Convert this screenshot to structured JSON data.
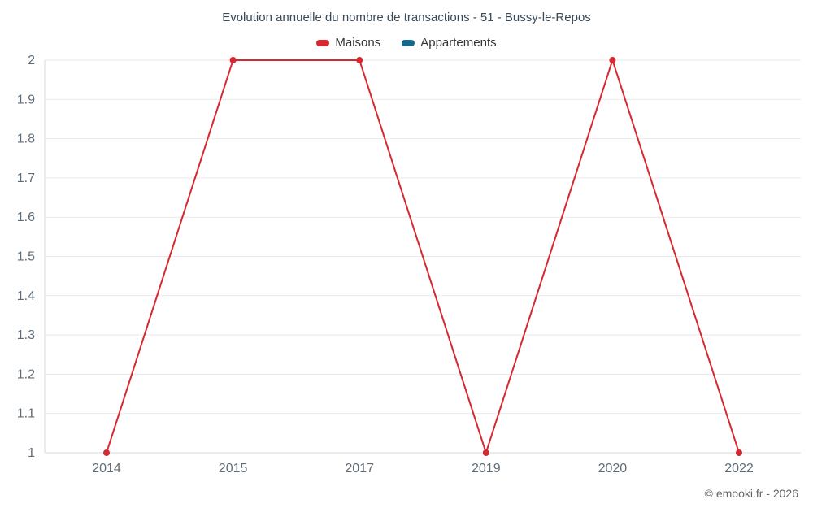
{
  "header": {
    "title": "Evolution annuelle du nombre de transactions - 51 - Bussy-le-Repos"
  },
  "footer": {
    "copyright": "© emooki.fr - 2026"
  },
  "colors": {
    "maisons": "#d7282f",
    "appartements": "#16698e",
    "grid": "#e9e9e9",
    "axis": "#d9d9d9",
    "tick_text": "#5f6b76",
    "title_text": "#3b4a56"
  },
  "chart_data": {
    "type": "line",
    "title": "Evolution annuelle du nombre de transactions - 51 - Bussy-le-Repos",
    "categories": [
      "2014",
      "2015",
      "2017",
      "2019",
      "2020",
      "2022"
    ],
    "series": [
      {
        "name": "Maisons",
        "color": "#d7282f",
        "values": [
          1,
          2,
          2,
          1,
          2,
          1
        ]
      },
      {
        "name": "Appartements",
        "color": "#16698e",
        "values": []
      }
    ],
    "xlabel": "",
    "ylabel": "",
    "ylim": [
      1,
      2
    ],
    "yticks": [
      {
        "value": 1,
        "label": "1"
      },
      {
        "value": 1.1,
        "label": "1.1"
      },
      {
        "value": 1.2,
        "label": "1.2"
      },
      {
        "value": 1.3,
        "label": "1.3"
      },
      {
        "value": 1.4,
        "label": "1.4"
      },
      {
        "value": 1.5,
        "label": "1.5"
      },
      {
        "value": 1.6,
        "label": "1.6"
      },
      {
        "value": 1.7,
        "label": "1.7"
      },
      {
        "value": 1.8,
        "label": "1.8"
      },
      {
        "value": 1.9,
        "label": "1.9"
      },
      {
        "value": 2,
        "label": "2"
      }
    ],
    "grid": "horizontal",
    "legend_position": "top"
  }
}
